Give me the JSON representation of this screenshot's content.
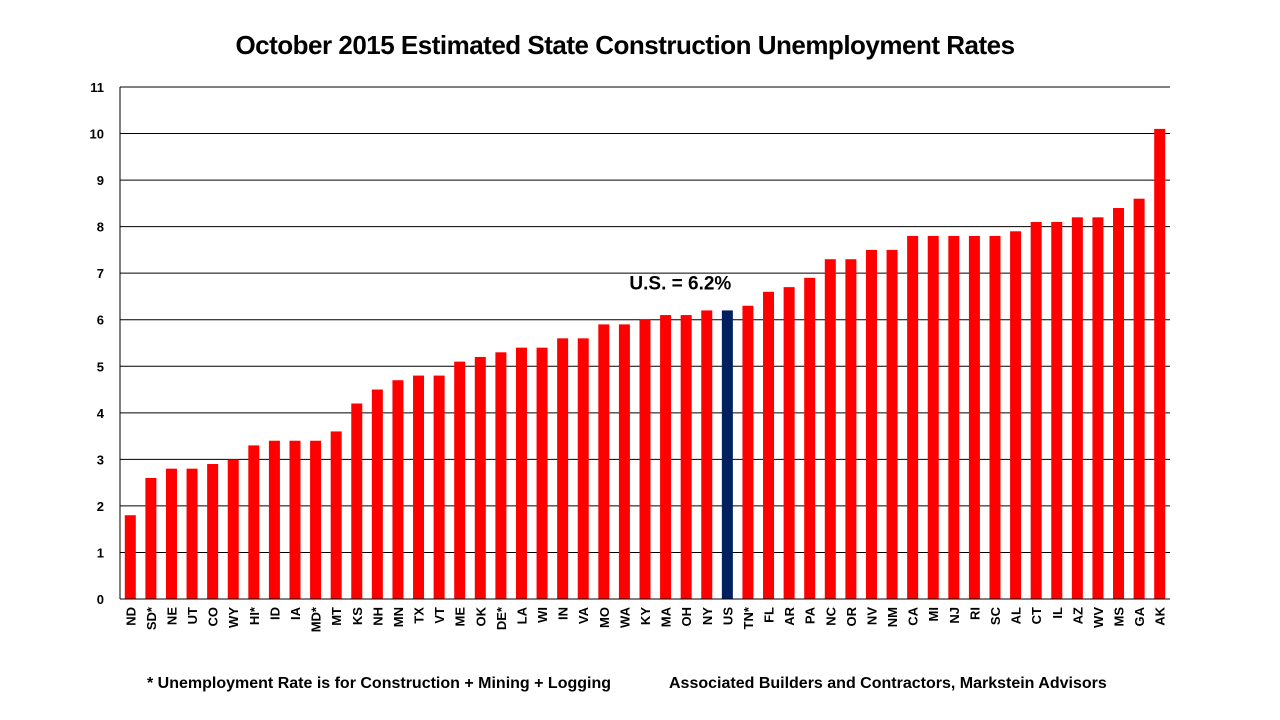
{
  "chart_data": {
    "type": "bar",
    "title": "October 2015 Estimated State Construction Unemployment Rates",
    "categories": [
      "ND",
      "SD*",
      "NE",
      "UT",
      "CO",
      "WY",
      "HI*",
      "ID",
      "IA",
      "MD*",
      "MT",
      "KS",
      "NH",
      "MN",
      "TX",
      "VT",
      "ME",
      "OK",
      "DE*",
      "LA",
      "WI",
      "IN",
      "VA",
      "MO",
      "WA",
      "KY",
      "MA",
      "OH",
      "NY",
      "US",
      "TN*",
      "FL",
      "AR",
      "PA",
      "NC",
      "OR",
      "NV",
      "NM",
      "CA",
      "MI",
      "NJ",
      "RI",
      "SC",
      "AL",
      "CT",
      "IL",
      "AZ",
      "WV",
      "MS",
      "GA",
      "AK"
    ],
    "values": [
      1.8,
      2.6,
      2.8,
      2.8,
      2.9,
      3.0,
      3.3,
      3.4,
      3.4,
      3.4,
      3.6,
      4.2,
      4.5,
      4.7,
      4.8,
      4.8,
      5.1,
      5.2,
      5.3,
      5.4,
      5.4,
      5.6,
      5.6,
      5.9,
      5.9,
      6.0,
      6.1,
      6.1,
      6.2,
      6.2,
      6.3,
      6.6,
      6.7,
      6.9,
      7.3,
      7.3,
      7.5,
      7.5,
      7.8,
      7.8,
      7.8,
      7.8,
      7.8,
      7.9,
      8.1,
      8.1,
      8.2,
      8.2,
      8.4,
      8.6,
      10.1
    ],
    "highlight_category": "US",
    "annotation": "U.S. = 6.2%",
    "ylim": [
      0,
      11
    ],
    "yticks": [
      0,
      1,
      2,
      3,
      4,
      5,
      6,
      7,
      8,
      9,
      10,
      11
    ],
    "xlabel": "",
    "ylabel": "",
    "grid": true,
    "colors": {
      "bar": "#ff0000",
      "highlight": "#002060",
      "grid": "#000000"
    }
  },
  "footnotes": {
    "left": "* Unemployment Rate is for Construction + Mining + Logging",
    "right": "Associated Builders and Contractors, Markstein Advisors"
  }
}
